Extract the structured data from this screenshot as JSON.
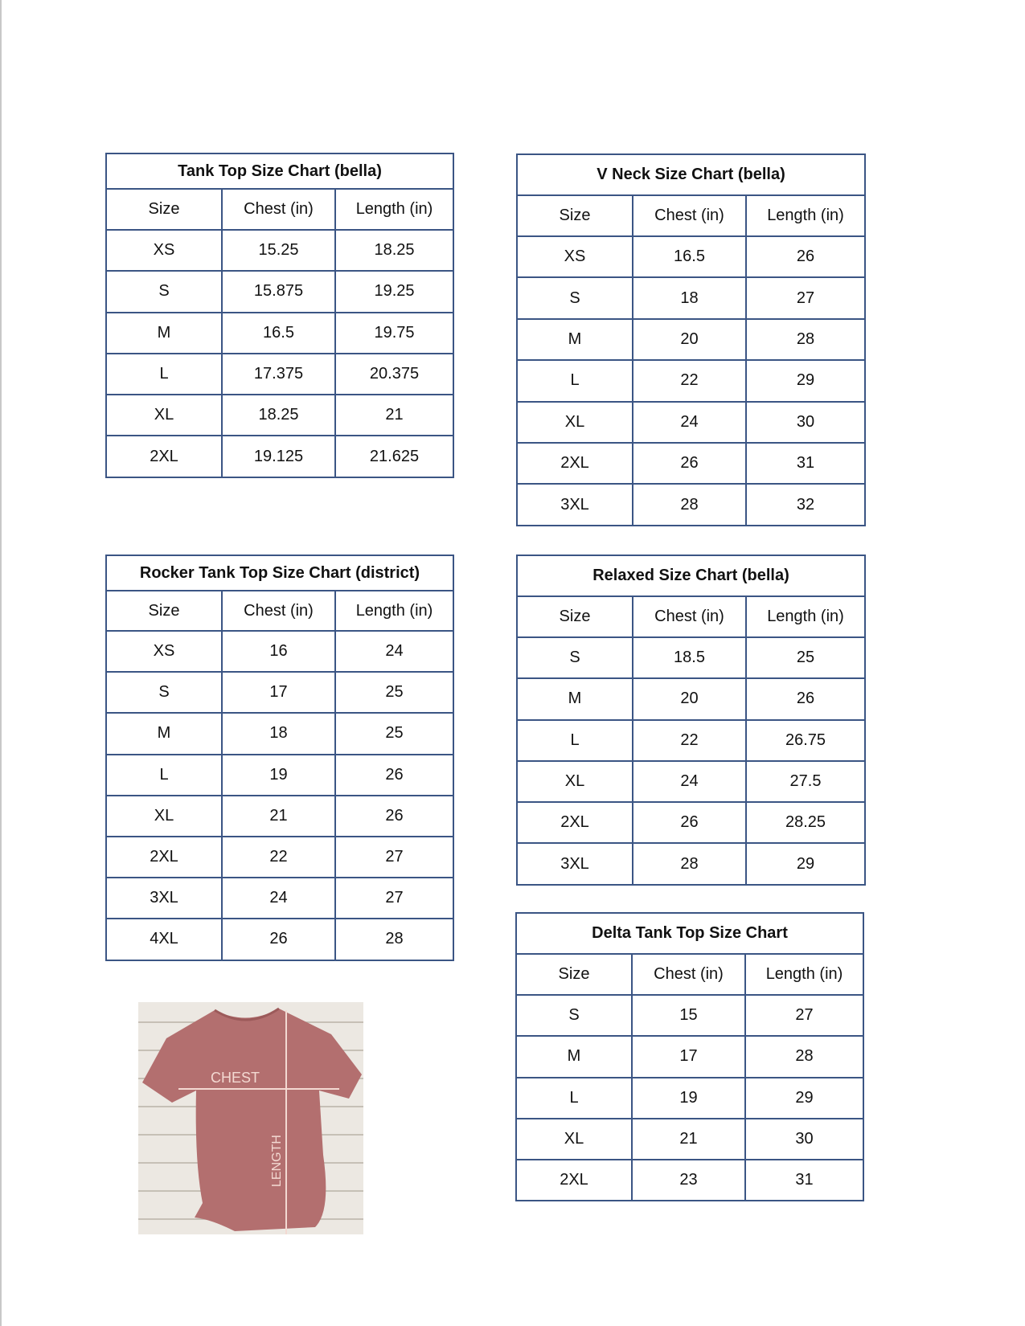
{
  "tables": {
    "tank_top": {
      "title": "Tank Top Size Chart  (bella)",
      "headers": [
        "Size",
        "Chest (in)",
        "Length (in)"
      ],
      "rows": [
        [
          "XS",
          "15.25",
          "18.25"
        ],
        [
          "S",
          "15.875",
          "19.25"
        ],
        [
          "M",
          "16.5",
          "19.75"
        ],
        [
          "L",
          "17.375",
          "20.375"
        ],
        [
          "XL",
          "18.25",
          "21"
        ],
        [
          "2XL",
          "19.125",
          "21.625"
        ]
      ]
    },
    "v_neck": {
      "title": "V Neck Size Chart  (bella)",
      "headers": [
        "Size",
        "Chest (in)",
        "Length (in)"
      ],
      "rows": [
        [
          "XS",
          "16.5",
          "26"
        ],
        [
          "S",
          "18",
          "27"
        ],
        [
          "M",
          "20",
          "28"
        ],
        [
          "L",
          "22",
          "29"
        ],
        [
          "XL",
          "24",
          "30"
        ],
        [
          "2XL",
          "26",
          "31"
        ],
        [
          "3XL",
          "28",
          "32"
        ]
      ]
    },
    "rocker": {
      "title": "Rocker Tank Top Size Chart (district)",
      "headers": [
        "Size",
        "Chest (in)",
        "Length (in)"
      ],
      "rows": [
        [
          "XS",
          "16",
          "24"
        ],
        [
          "S",
          "17",
          "25"
        ],
        [
          "M",
          "18",
          "25"
        ],
        [
          "L",
          "19",
          "26"
        ],
        [
          "XL",
          "21",
          "26"
        ],
        [
          "2XL",
          "22",
          "27"
        ],
        [
          "3XL",
          "24",
          "27"
        ],
        [
          "4XL",
          "26",
          "28"
        ]
      ]
    },
    "relaxed": {
      "title": "Relaxed Size Chart (bella)",
      "headers": [
        "Size",
        "Chest (in)",
        "Length (in)"
      ],
      "rows": [
        [
          "S",
          "18.5",
          "25"
        ],
        [
          "M",
          "20",
          "26"
        ],
        [
          "L",
          "22",
          "26.75"
        ],
        [
          "XL",
          "24",
          "27.5"
        ],
        [
          "2XL",
          "26",
          "28.25"
        ],
        [
          "3XL",
          "28",
          "29"
        ]
      ]
    },
    "delta": {
      "title": "Delta Tank Top Size Chart",
      "headers": [
        "Size",
        "Chest (in)",
        "Length (in)"
      ],
      "rows": [
        [
          "S",
          "15",
          "27"
        ],
        [
          "M",
          "17",
          "28"
        ],
        [
          "L",
          "19",
          "29"
        ],
        [
          "XL",
          "21",
          "30"
        ],
        [
          "2XL",
          "23",
          "31"
        ]
      ]
    }
  },
  "image": {
    "chest_label": "CHEST",
    "length_label": "LENGTH"
  },
  "colors": {
    "border": "#3b5584",
    "shirt": "#b36f6f"
  }
}
